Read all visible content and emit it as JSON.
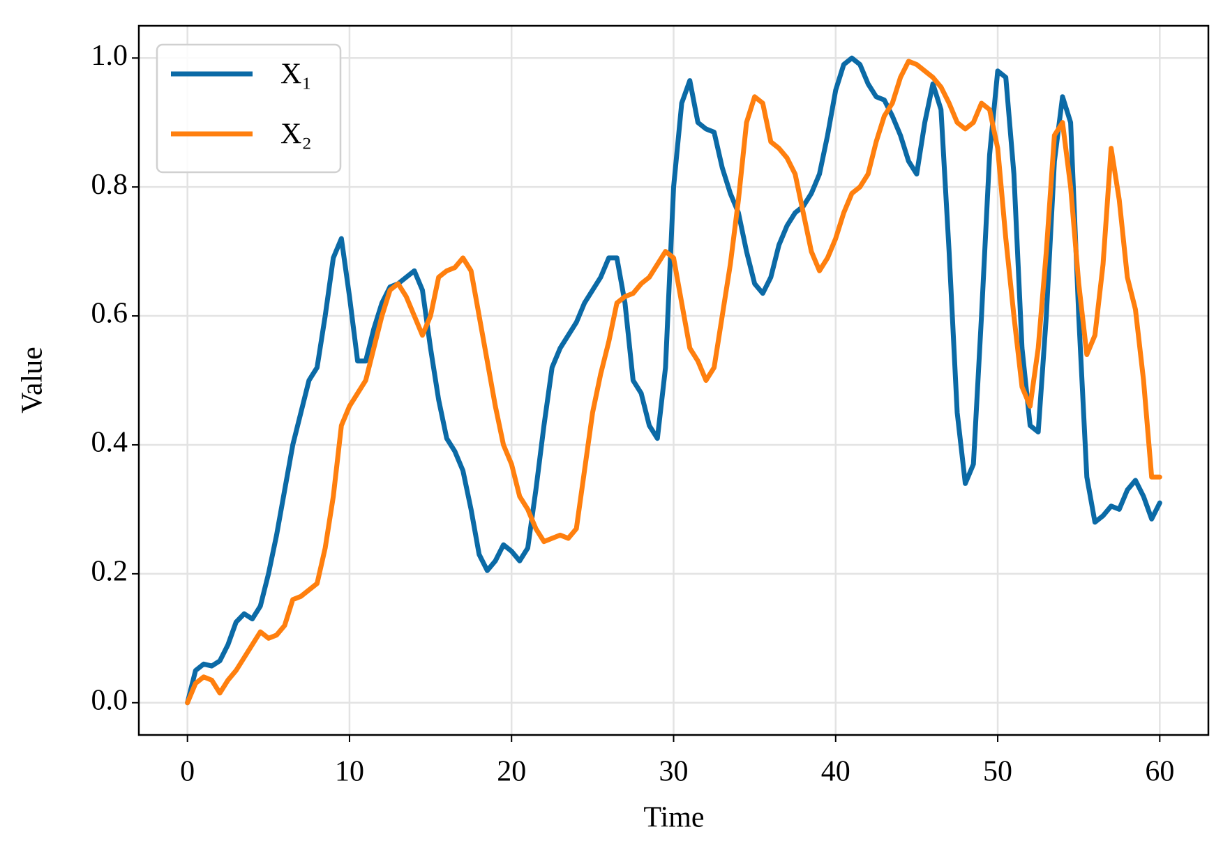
{
  "chart_data": {
    "type": "line",
    "x_label": "Time",
    "y_label": "Value",
    "x": [
      0,
      0.5,
      1,
      1.5,
      2,
      2.5,
      3,
      3.5,
      4,
      4.5,
      5,
      5.5,
      6,
      6.5,
      7,
      7.5,
      8,
      8.5,
      9,
      9.5,
      10,
      10.5,
      11,
      11.5,
      12,
      12.5,
      13,
      13.5,
      14,
      14.5,
      15,
      15.5,
      16,
      16.5,
      17,
      17.5,
      18,
      18.5,
      19,
      19.5,
      20,
      20.5,
      21,
      21.5,
      22,
      22.5,
      23,
      23.5,
      24,
      24.5,
      25,
      25.5,
      26,
      26.5,
      27,
      27.5,
      28,
      28.5,
      29,
      29.5,
      30,
      30.5,
      31,
      31.5,
      32,
      32.5,
      33,
      33.5,
      34,
      34.5,
      35,
      35.5,
      36,
      36.5,
      37,
      37.5,
      38,
      38.5,
      39,
      39.5,
      40,
      40.5,
      41,
      41.5,
      42,
      42.5,
      43,
      43.5,
      44,
      44.5,
      45,
      45.5,
      46,
      46.5,
      47,
      47.5,
      48,
      48.5,
      49,
      49.5,
      50,
      50.5,
      51,
      51.5,
      52,
      52.5,
      53,
      53.5,
      54,
      54.5,
      55,
      55.5,
      56,
      56.5,
      57,
      57.5,
      58,
      58.5,
      59,
      59.5,
      60
    ],
    "series": [
      {
        "name": "X₁",
        "color": "#0b6aa6",
        "values": [
          0,
          0.05,
          0.06,
          0.057,
          0.065,
          0.09,
          0.125,
          0.138,
          0.13,
          0.15,
          0.2,
          0.26,
          0.33,
          0.4,
          0.45,
          0.5,
          0.52,
          0.6,
          0.69,
          0.72,
          0.63,
          0.53,
          0.53,
          0.58,
          0.62,
          0.645,
          0.65,
          0.66,
          0.67,
          0.64,
          0.55,
          0.47,
          0.41,
          0.39,
          0.36,
          0.3,
          0.23,
          0.205,
          0.22,
          0.245,
          0.235,
          0.22,
          0.24,
          0.33,
          0.43,
          0.52,
          0.55,
          0.57,
          0.59,
          0.62,
          0.64,
          0.66,
          0.69,
          0.69,
          0.62,
          0.5,
          0.48,
          0.43,
          0.41,
          0.52,
          0.8,
          0.93,
          0.965,
          0.9,
          0.89,
          0.885,
          0.83,
          0.79,
          0.76,
          0.7,
          0.65,
          0.635,
          0.66,
          0.71,
          0.74,
          0.76,
          0.77,
          0.79,
          0.82,
          0.88,
          0.95,
          0.99,
          1.0,
          0.99,
          0.96,
          0.94,
          0.935,
          0.91,
          0.88,
          0.84,
          0.82,
          0.9,
          0.96,
          0.92,
          0.7,
          0.45,
          0.34,
          0.37,
          0.6,
          0.85,
          0.98,
          0.97,
          0.82,
          0.55,
          0.43,
          0.42,
          0.6,
          0.84,
          0.94,
          0.9,
          0.6,
          0.35,
          0.28,
          0.29,
          0.305,
          0.3,
          0.33,
          0.345,
          0.32,
          0.285,
          0.31
        ]
      },
      {
        "name": "X₂",
        "color": "#ff7f0e",
        "values": [
          0,
          0.03,
          0.04,
          0.035,
          0.015,
          0.035,
          0.05,
          0.07,
          0.09,
          0.11,
          0.1,
          0.105,
          0.12,
          0.16,
          0.165,
          0.175,
          0.185,
          0.24,
          0.32,
          0.43,
          0.46,
          0.48,
          0.5,
          0.55,
          0.6,
          0.64,
          0.65,
          0.63,
          0.6,
          0.57,
          0.6,
          0.66,
          0.67,
          0.675,
          0.69,
          0.67,
          0.6,
          0.53,
          0.46,
          0.4,
          0.37,
          0.32,
          0.3,
          0.27,
          0.25,
          0.255,
          0.26,
          0.255,
          0.27,
          0.36,
          0.45,
          0.51,
          0.56,
          0.62,
          0.63,
          0.635,
          0.65,
          0.66,
          0.68,
          0.7,
          0.69,
          0.62,
          0.55,
          0.53,
          0.5,
          0.52,
          0.6,
          0.68,
          0.78,
          0.9,
          0.94,
          0.93,
          0.87,
          0.86,
          0.845,
          0.82,
          0.76,
          0.7,
          0.67,
          0.69,
          0.72,
          0.76,
          0.79,
          0.8,
          0.82,
          0.87,
          0.91,
          0.93,
          0.97,
          0.995,
          0.99,
          0.98,
          0.97,
          0.955,
          0.93,
          0.9,
          0.89,
          0.9,
          0.93,
          0.92,
          0.86,
          0.72,
          0.6,
          0.49,
          0.46,
          0.55,
          0.7,
          0.88,
          0.9,
          0.8,
          0.65,
          0.54,
          0.57,
          0.68,
          0.86,
          0.78,
          0.66,
          0.61,
          0.5,
          0.35,
          0.35
        ]
      }
    ],
    "xlim": [
      -3,
      63
    ],
    "ylim": [
      -0.05,
      1.05
    ],
    "xticks": [
      0,
      10,
      20,
      30,
      40,
      50,
      60
    ],
    "yticks": [
      {
        "value": 0,
        "label": "0.0"
      },
      {
        "value": 0.2,
        "label": "0.2"
      },
      {
        "value": 0.4,
        "label": "0.4"
      },
      {
        "value": 0.6,
        "label": "0.6"
      },
      {
        "value": 0.8,
        "label": "0.8"
      },
      {
        "value": 1,
        "label": "1.0"
      }
    ],
    "grid": true,
    "legend": "upper left"
  }
}
